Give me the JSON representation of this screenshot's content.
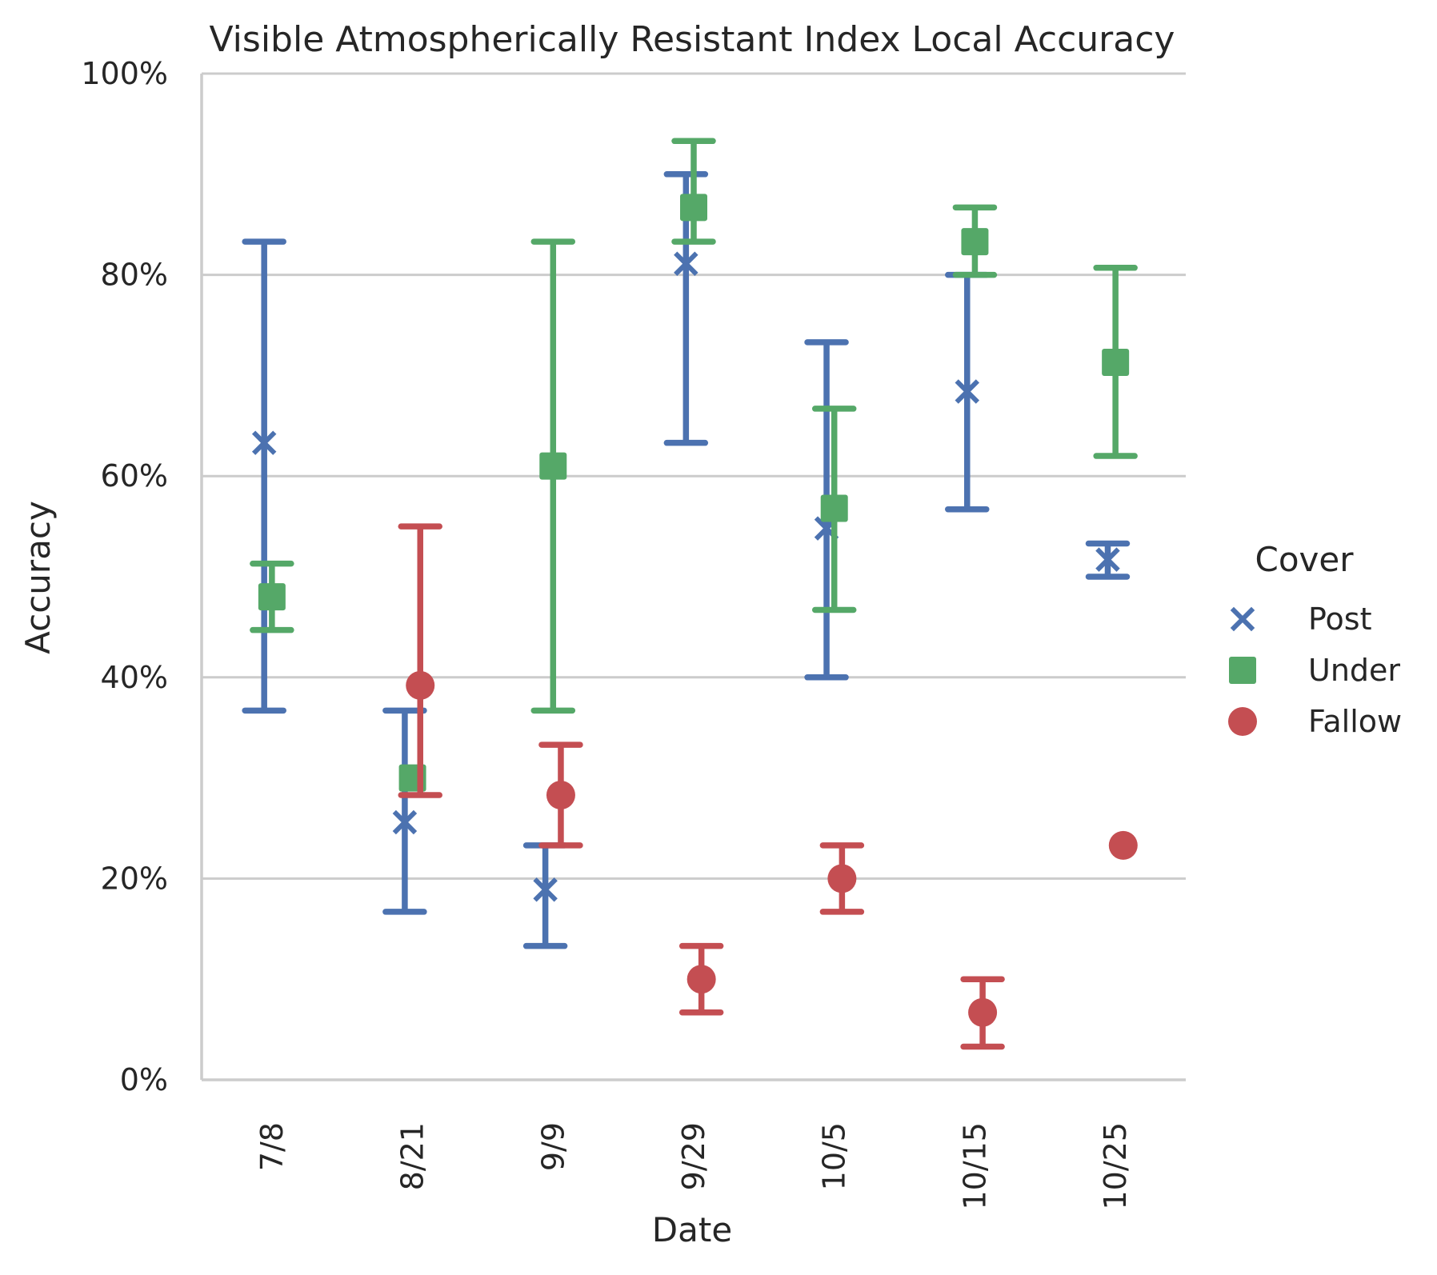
{
  "chart_data": {
    "type": "scatter",
    "title": "Visible Atmospherically Resistant Index Local Accuracy",
    "xlabel": "Date",
    "ylabel": "Accuracy",
    "categories": [
      "7/8",
      "8/21",
      "9/9",
      "9/29",
      "10/5",
      "10/15",
      "10/25"
    ],
    "ylim": [
      0,
      100
    ],
    "yticks": [
      0,
      20,
      40,
      60,
      80,
      100
    ],
    "ytick_labels": [
      "0%",
      "20%",
      "40%",
      "60%",
      "80%",
      "100%"
    ],
    "grid": "horizontal",
    "legend": {
      "title": "Cover",
      "placement": "right"
    },
    "series": [
      {
        "name": "Post",
        "marker": "x",
        "color": "#4C72B0",
        "values": [
          63.3,
          25.6,
          18.9,
          81.1,
          54.8,
          68.4,
          51.7
        ],
        "err_low": [
          36.7,
          16.7,
          13.3,
          63.3,
          40.0,
          56.7,
          50.0
        ],
        "err_high": [
          83.3,
          36.7,
          23.3,
          90.0,
          73.3,
          80.0,
          53.3
        ]
      },
      {
        "name": "Under",
        "marker": "square",
        "color": "#55A868",
        "values": [
          48.0,
          30.0,
          61.0,
          86.7,
          56.8,
          83.3,
          71.3
        ],
        "err_low": [
          44.7,
          30.0,
          36.7,
          83.3,
          46.7,
          80.0,
          62.0
        ],
        "err_high": [
          51.3,
          30.0,
          83.3,
          93.3,
          66.7,
          86.7,
          80.7
        ]
      },
      {
        "name": "Fallow",
        "marker": "circle",
        "color": "#C44E52",
        "values": [
          null,
          39.2,
          28.3,
          10.0,
          20.0,
          6.7,
          23.3
        ],
        "err_low": [
          null,
          28.3,
          23.3,
          6.7,
          16.7,
          3.3,
          23.3
        ],
        "err_high": [
          null,
          55.0,
          33.3,
          13.3,
          23.3,
          10.0,
          23.3
        ]
      }
    ]
  }
}
